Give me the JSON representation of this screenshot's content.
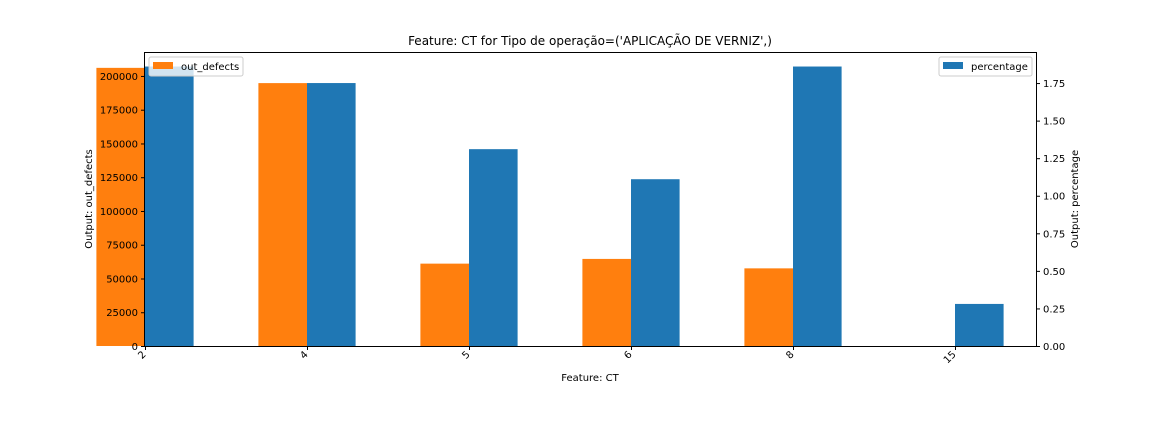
{
  "chart_data": {
    "type": "bar",
    "title": "Feature: CT for Tipo de operação=('APLICAÇÃO DE VERNIZ',)",
    "xlabel": "Feature: CT",
    "categories": [
      "2",
      "4",
      "5",
      "6",
      "8",
      "15"
    ],
    "series": [
      {
        "name": "out_defects",
        "axis": "left",
        "color": "#ff7f0e",
        "values": [
          206000,
          194700,
          61000,
          64500,
          57500,
          0
        ]
      },
      {
        "name": "percentage",
        "axis": "right",
        "color": "#1f77b4",
        "values": [
          1.86,
          1.75,
          1.31,
          1.11,
          1.86,
          0.28
        ]
      }
    ],
    "left_axis": {
      "label": "Output: out_defects",
      "ylim": [
        0,
        217000
      ],
      "ticks": [
        0,
        25000,
        50000,
        75000,
        100000,
        125000,
        150000,
        175000,
        200000
      ]
    },
    "right_axis": {
      "label": "Output: percentage",
      "ylim": [
        0,
        1.95
      ],
      "ticks": [
        "0.00",
        "0.25",
        "0.50",
        "0.75",
        "1.00",
        "1.25",
        "1.50",
        "1.75"
      ]
    },
    "legends": [
      {
        "series": "out_defects",
        "placement": "upper left"
      },
      {
        "series": "percentage",
        "placement": "upper right"
      }
    ],
    "grid": false
  }
}
